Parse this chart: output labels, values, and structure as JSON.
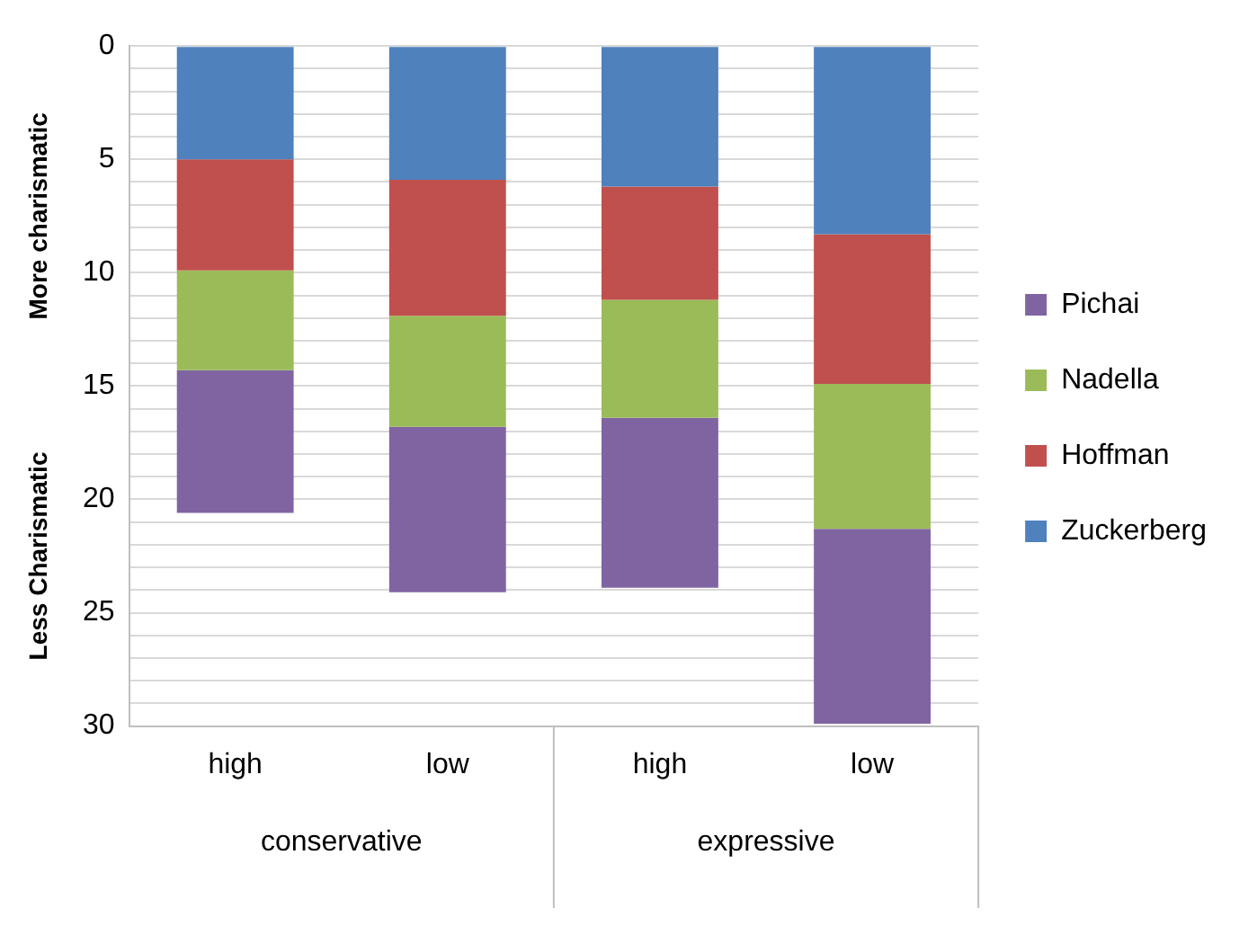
{
  "chart_data": {
    "type": "bar",
    "stacked": true,
    "categories": [
      "high",
      "low",
      "high",
      "low"
    ],
    "series": [
      {
        "name": "Zuckerberg",
        "color": "#4f81bd",
        "values": [
          5,
          5.9,
          6.2,
          8.3
        ]
      },
      {
        "name": "Hoffman",
        "color": "#c0504d",
        "values": [
          4.9,
          6.0,
          5.0,
          6.6
        ]
      },
      {
        "name": "Nadella",
        "color": "#9bbb59",
        "values": [
          4.4,
          4.9,
          5.2,
          6.4
        ]
      },
      {
        "name": "Pichai",
        "color": "#8064a2",
        "values": [
          6.3,
          7.3,
          7.5,
          8.6
        ]
      }
    ],
    "ylim": [
      30,
      0
    ],
    "yticks": [
      0,
      {
        "value": 1,
        "label": null
      },
      {
        "value": 2,
        "label": null
      },
      {
        "value": 3,
        "label": null
      },
      {
        "value": 4,
        "label": null
      },
      5,
      {
        "value": 6,
        "label": null
      },
      {
        "value": 7,
        "label": null
      },
      {
        "value": 8,
        "label": null
      },
      {
        "value": 9,
        "label": null
      },
      10,
      {
        "value": 11,
        "label": null
      },
      {
        "value": 12,
        "label": null
      },
      {
        "value": 13,
        "label": null
      },
      {
        "value": 14,
        "label": null
      },
      15,
      {
        "value": 16,
        "label": null
      },
      {
        "value": 17,
        "label": null
      },
      {
        "value": 18,
        "label": null
      },
      {
        "value": 19,
        "label": null
      },
      20,
      {
        "value": 21,
        "label": null
      },
      {
        "value": 22,
        "label": null
      },
      {
        "value": 23,
        "label": null
      },
      {
        "value": 24,
        "label": null
      },
      25,
      {
        "value": 26,
        "label": null
      },
      {
        "value": 27,
        "label": null
      },
      {
        "value": 28,
        "label": null
      },
      {
        "value": 29,
        "label": null
      },
      30
    ],
    "annotations": [
      "More charismatic",
      "Less Charismatic",
      "conservative",
      "expressive"
    ],
    "grid": "y",
    "legend": "right"
  }
}
